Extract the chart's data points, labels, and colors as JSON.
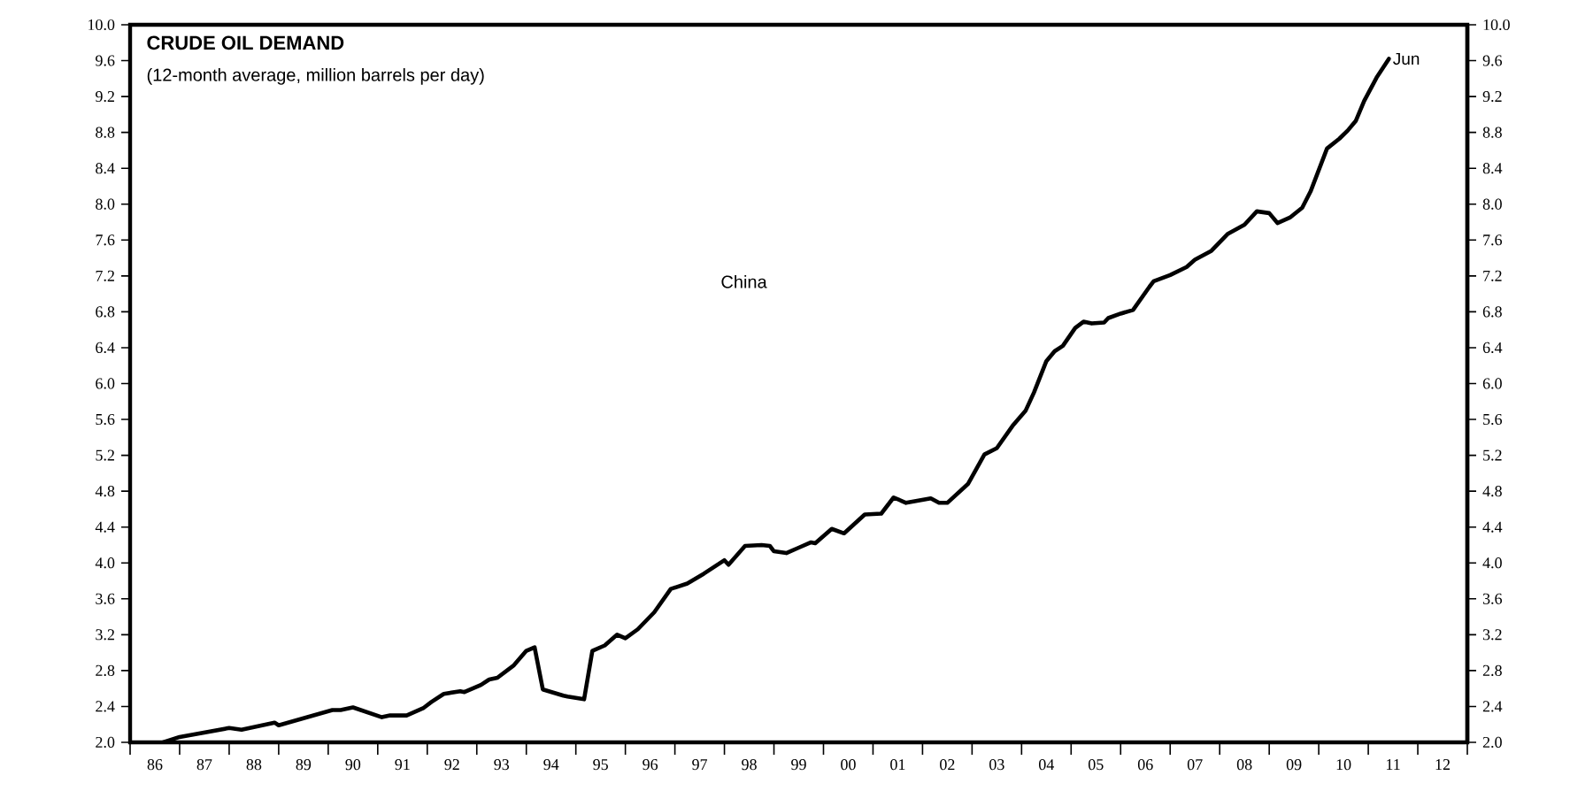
{
  "chart_data": {
    "type": "line",
    "title": "CRUDE OIL DEMAND",
    "subtitle": "(12-month average, million barrels per day)",
    "annotations": [
      "China",
      {
        "text": "Jun",
        "x": "2011-06",
        "y": 9.62
      }
    ],
    "series": [
      {
        "color": "#000000",
        "x": [
          "1986-09",
          "1987-01",
          "1988-01",
          "1988-04",
          "1988-06",
          "1988-12",
          "1989-01",
          "1990-02",
          "1990-04",
          "1990-07",
          "1991-02",
          "1991-04",
          "1991-08",
          "1991-12",
          "1992-02",
          "1992-05",
          "1992-09",
          "1992-10",
          "1993-02",
          "1993-04",
          "1993-06",
          "1993-10",
          "1994-01",
          "1994-03",
          "1994-05",
          "1994-10",
          "1994-11",
          "1995-03",
          "1995-05",
          "1995-08",
          "1995-11",
          "1996-01",
          "1996-04",
          "1996-08",
          "1996-12",
          "1997-04",
          "1997-08",
          "1998-01",
          "1998-02",
          "1998-06",
          "1998-10",
          "1998-12",
          "1999-01",
          "1999-04",
          "1999-07",
          "1999-10",
          "1999-11",
          "2000-03",
          "2000-06",
          "2000-11",
          "2001-03",
          "2001-06",
          "2001-09",
          "2002-03",
          "2002-05",
          "2002-07",
          "2002-12",
          "2003-04",
          "2003-07",
          "2003-11",
          "2004-02",
          "2004-04",
          "2004-07",
          "2004-09",
          "2004-11",
          "2005-02",
          "2005-04",
          "2005-06",
          "2005-09",
          "2005-10",
          "2006-01",
          "2006-04",
          "2006-08",
          "2006-09",
          "2007-01",
          "2007-05",
          "2007-07",
          "2007-11",
          "2008-03",
          "2008-07",
          "2008-10",
          "2009-01",
          "2009-03",
          "2009-06",
          "2009-09",
          "2009-11",
          "2010-03",
          "2010-06",
          "2010-08",
          "2010-10",
          "2010-12",
          "2011-03",
          "2011-06"
        ],
        "values": [
          2.0,
          2.06,
          2.16,
          2.14,
          2.16,
          2.22,
          2.19,
          2.36,
          2.36,
          2.39,
          2.28,
          2.3,
          2.3,
          2.38,
          2.45,
          2.54,
          2.57,
          2.56,
          2.64,
          2.7,
          2.72,
          2.86,
          3.02,
          3.06,
          2.59,
          2.52,
          2.51,
          2.48,
          3.02,
          3.08,
          3.2,
          3.16,
          3.26,
          3.45,
          3.71,
          3.77,
          3.88,
          4.03,
          3.98,
          4.19,
          4.2,
          4.19,
          4.13,
          4.11,
          4.17,
          4.23,
          4.22,
          4.38,
          4.33,
          4.54,
          4.55,
          4.73,
          4.67,
          4.72,
          4.67,
          4.67,
          4.88,
          5.21,
          5.28,
          5.54,
          5.7,
          5.9,
          6.25,
          6.36,
          6.42,
          6.62,
          6.69,
          6.67,
          6.68,
          6.73,
          6.78,
          6.82,
          7.08,
          7.14,
          7.21,
          7.3,
          7.38,
          7.48,
          7.67,
          7.77,
          7.92,
          7.9,
          7.79,
          7.85,
          7.96,
          8.14,
          8.62,
          8.73,
          8.82,
          8.93,
          9.15,
          9.41,
          9.62
        ]
      }
    ],
    "xlim": [
      "1986-01",
      "2013-01"
    ],
    "xticks": [
      {
        "value": "1986-01",
        "label": null
      },
      {
        "value": "1986-07",
        "label": "86"
      },
      {
        "value": "1987-01",
        "label": null
      },
      {
        "value": "1987-07",
        "label": "87"
      },
      {
        "value": "1988-01",
        "label": null
      },
      {
        "value": "1988-07",
        "label": "88"
      },
      {
        "value": "1989-01",
        "label": null
      },
      {
        "value": "1989-07",
        "label": "89"
      },
      {
        "value": "1990-01",
        "label": null
      },
      {
        "value": "1990-07",
        "label": "90"
      },
      {
        "value": "1991-01",
        "label": null
      },
      {
        "value": "1991-07",
        "label": "91"
      },
      {
        "value": "1992-01",
        "label": null
      },
      {
        "value": "1992-07",
        "label": "92"
      },
      {
        "value": "1993-01",
        "label": null
      },
      {
        "value": "1993-07",
        "label": "93"
      },
      {
        "value": "1994-01",
        "label": null
      },
      {
        "value": "1994-07",
        "label": "94"
      },
      {
        "value": "1995-01",
        "label": null
      },
      {
        "value": "1995-07",
        "label": "95"
      },
      {
        "value": "1996-01",
        "label": null
      },
      {
        "value": "1996-07",
        "label": "96"
      },
      {
        "value": "1997-01",
        "label": null
      },
      {
        "value": "1997-07",
        "label": "97"
      },
      {
        "value": "1998-01",
        "label": null
      },
      {
        "value": "1998-07",
        "label": "98"
      },
      {
        "value": "1999-01",
        "label": null
      },
      {
        "value": "1999-07",
        "label": "99"
      },
      {
        "value": "2000-01",
        "label": null
      },
      {
        "value": "2000-07",
        "label": "00"
      },
      {
        "value": "2001-01",
        "label": null
      },
      {
        "value": "2001-07",
        "label": "01"
      },
      {
        "value": "2002-01",
        "label": null
      },
      {
        "value": "2002-07",
        "label": "02"
      },
      {
        "value": "2003-01",
        "label": null
      },
      {
        "value": "2003-07",
        "label": "03"
      },
      {
        "value": "2004-01",
        "label": null
      },
      {
        "value": "2004-07",
        "label": "04"
      },
      {
        "value": "2005-01",
        "label": null
      },
      {
        "value": "2005-07",
        "label": "05"
      },
      {
        "value": "2006-01",
        "label": null
      },
      {
        "value": "2006-07",
        "label": "06"
      },
      {
        "value": "2007-01",
        "label": null
      },
      {
        "value": "2007-07",
        "label": "07"
      },
      {
        "value": "2008-01",
        "label": null
      },
      {
        "value": "2008-07",
        "label": "08"
      },
      {
        "value": "2009-01",
        "label": null
      },
      {
        "value": "2009-07",
        "label": "09"
      },
      {
        "value": "2010-01",
        "label": null
      },
      {
        "value": "2010-07",
        "label": "10"
      },
      {
        "value": "2011-01",
        "label": null
      },
      {
        "value": "2011-07",
        "label": "11"
      },
      {
        "value": "2012-01",
        "label": null
      },
      {
        "value": "2012-07",
        "label": "12"
      },
      {
        "value": "2013-01",
        "label": null
      }
    ],
    "ylim": [
      2.0,
      10.0
    ],
    "yticks": [
      {
        "value": 2.0,
        "label": "2.0"
      },
      {
        "value": 2.4,
        "label": "2.4"
      },
      {
        "value": 2.8,
        "label": "2.8"
      },
      {
        "value": 3.2,
        "label": "3.2"
      },
      {
        "value": 3.6,
        "label": "3.6"
      },
      {
        "value": 4.0,
        "label": "4.0"
      },
      {
        "value": 4.4,
        "label": "4.4"
      },
      {
        "value": 4.8,
        "label": "4.8"
      },
      {
        "value": 5.2,
        "label": "5.2"
      },
      {
        "value": 5.6,
        "label": "5.6"
      },
      {
        "value": 6.0,
        "label": "6.0"
      },
      {
        "value": 6.4,
        "label": "6.4"
      },
      {
        "value": 6.8,
        "label": "6.8"
      },
      {
        "value": 7.2,
        "label": "7.2"
      },
      {
        "value": 7.6,
        "label": "7.6"
      },
      {
        "value": 8.0,
        "label": "8.0"
      },
      {
        "value": 8.4,
        "label": "8.4"
      },
      {
        "value": 8.8,
        "label": "8.8"
      },
      {
        "value": 9.2,
        "label": "9.2"
      },
      {
        "value": 9.6,
        "label": "9.6"
      },
      {
        "value": 10.0,
        "label": "10.0"
      }
    ],
    "y2lim": [
      2.0,
      10.0
    ],
    "y2ticks": [
      {
        "value": 2.0,
        "label": "2.0"
      },
      {
        "value": 2.4,
        "label": "2.4"
      },
      {
        "value": 2.8,
        "label": "2.8"
      },
      {
        "value": 3.2,
        "label": "3.2"
      },
      {
        "value": 3.6,
        "label": "3.6"
      },
      {
        "value": 4.0,
        "label": "4.0"
      },
      {
        "value": 4.4,
        "label": "4.4"
      },
      {
        "value": 4.8,
        "label": "4.8"
      },
      {
        "value": 5.2,
        "label": "5.2"
      },
      {
        "value": 5.6,
        "label": "5.6"
      },
      {
        "value": 6.0,
        "label": "6.0"
      },
      {
        "value": 6.4,
        "label": "6.4"
      },
      {
        "value": 6.8,
        "label": "6.8"
      },
      {
        "value": 7.2,
        "label": "7.2"
      },
      {
        "value": 7.6,
        "label": "7.6"
      },
      {
        "value": 8.0,
        "label": "8.0"
      },
      {
        "value": 8.4,
        "label": "8.4"
      },
      {
        "value": 8.8,
        "label": "8.8"
      },
      {
        "value": 9.2,
        "label": "9.2"
      },
      {
        "value": 9.6,
        "label": "9.6"
      },
      {
        "value": 10.0,
        "label": "10.0"
      }
    ],
    "grid": false
  }
}
